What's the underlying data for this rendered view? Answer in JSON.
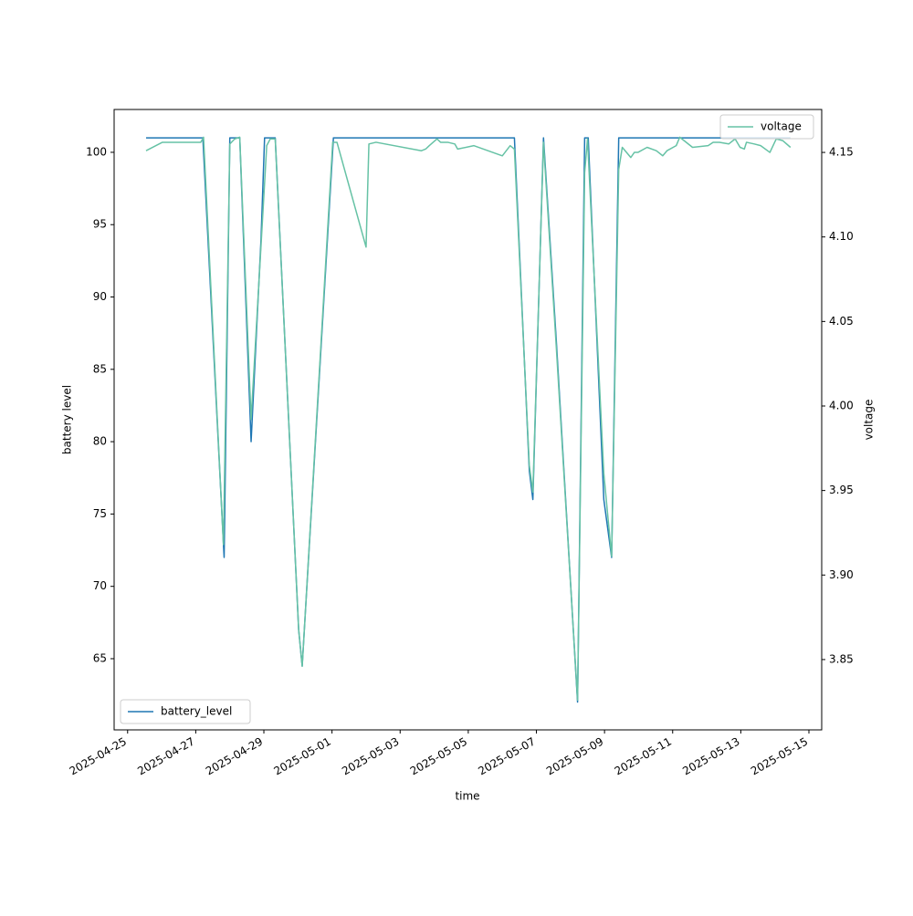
{
  "chart_data": {
    "type": "line",
    "x_label": "time",
    "y_label": "battery level",
    "y2_label": "voltage",
    "xlim": [
      "2025-04-24T14:30",
      "2025-05-15T09:00"
    ],
    "xticks": [
      "2025-04-25",
      "2025-04-27",
      "2025-04-29",
      "2025-05-01",
      "2025-05-03",
      "2025-05-05",
      "2025-05-07",
      "2025-05-09",
      "2025-05-11",
      "2025-05-13",
      "2025-05-15"
    ],
    "ylim": [
      60.08,
      102.96
    ],
    "yticks": [
      65,
      70,
      75,
      80,
      85,
      90,
      95,
      100
    ],
    "y2lim": [
      3.8084,
      4.1754
    ],
    "y2ticks": [
      3.85,
      {
        "value": 3.9,
        "label": "3.90"
      },
      3.95,
      {
        "value": 4.0,
        "label": "4.00"
      },
      4.05,
      {
        "value": 4.1,
        "label": "4.10"
      },
      4.15
    ],
    "series": [
      {
        "name": "battery_level",
        "color": "#1f77b4",
        "legend": "lower left",
        "x": [
          "2025-04-25T13:00",
          "2025-04-27T05:00",
          "2025-04-27T20:00",
          "2025-04-28T00:00",
          "2025-04-28T07:00",
          "2025-04-28T15:00",
          "2025-04-28T22:00",
          "2025-04-29T00:30",
          "2025-04-29T08:00",
          "2025-04-30T00:30",
          "2025-04-30T03:00",
          "2025-05-01T01:00",
          "2025-05-06T08:30",
          "2025-05-06T19:00",
          "2025-05-06T21:30",
          "2025-05-07T05:00",
          "2025-05-07T14:00",
          "2025-05-08T05:00",
          "2025-05-08T10:00",
          "2025-05-08T12:30",
          "2025-05-08T23:30",
          "2025-05-09T05:00",
          "2025-05-09T10:00",
          "2025-05-14T11:00"
        ],
        "values": [
          101,
          101,
          72,
          101,
          101,
          80,
          94,
          101,
          101,
          67,
          64.5,
          101,
          101,
          78,
          76,
          101,
          87,
          62,
          101,
          101,
          76,
          72,
          101,
          101
        ]
      },
      {
        "name": "voltage",
        "color": "#66c2a5",
        "axis": "y2",
        "legend": "upper right",
        "x": [
          "2025-04-25T13:00",
          "2025-04-26T00:30",
          "2025-04-27T03:30",
          "2025-04-27T05:30",
          "2025-04-27T19:30",
          "2025-04-28T00:00",
          "2025-04-28T03:30",
          "2025-04-28T07:00",
          "2025-04-28T15:00",
          "2025-04-29T02:00",
          "2025-04-29T04:30",
          "2025-04-29T08:00",
          "2025-04-30T00:30",
          "2025-04-30T03:00",
          "2025-05-01T00:30",
          "2025-05-01T03:30",
          "2025-05-02T00:00",
          "2025-05-02T02:00",
          "2025-05-02T07:00",
          "2025-05-03T15:00",
          "2025-05-03T18:00",
          "2025-05-03T20:30",
          "2025-05-04T02:00",
          "2025-05-04T04:30",
          "2025-05-04T09:30",
          "2025-05-04T14:30",
          "2025-05-04T16:30",
          "2025-05-05T04:00",
          "2025-05-06T00:00",
          "2025-05-06T05:30",
          "2025-05-06T08:30",
          "2025-05-06T19:00",
          "2025-05-06T21:30",
          "2025-05-07T05:00",
          "2025-05-07T14:00",
          "2025-05-08T05:00",
          "2025-05-08T10:00",
          "2025-05-08T12:00",
          "2025-05-08T23:30",
          "2025-05-09T05:00",
          "2025-05-09T10:00",
          "2025-05-09T12:30",
          "2025-05-09T18:30",
          "2025-05-09T21:00",
          "2025-05-09T23:30",
          "2025-05-10T06:00",
          "2025-05-10T12:30",
          "2025-05-10T17:00",
          "2025-05-10T20:00",
          "2025-05-11T02:30",
          "2025-05-11T05:00",
          "2025-05-11T14:00",
          "2025-05-12T01:00",
          "2025-05-12T04:30",
          "2025-05-12T09:00",
          "2025-05-12T15:30",
          "2025-05-12T20:00",
          "2025-05-12T23:30",
          "2025-05-13T02:30",
          "2025-05-13T04:00",
          "2025-05-13T09:30",
          "2025-05-13T14:00",
          "2025-05-13T20:30",
          "2025-05-14T01:00",
          "2025-05-14T05:30",
          "2025-05-14T11:00"
        ],
        "values": [
          4.151,
          4.156,
          4.156,
          4.159,
          3.918,
          4.155,
          4.158,
          4.159,
          3.992,
          4.154,
          4.158,
          4.158,
          3.868,
          3.846,
          4.156,
          4.156,
          4.094,
          4.155,
          4.156,
          4.151,
          4.152,
          4.154,
          4.158,
          4.156,
          4.156,
          4.155,
          4.152,
          4.154,
          4.148,
          4.154,
          4.152,
          3.965,
          3.949,
          4.156,
          4.035,
          3.826,
          4.138,
          4.158,
          3.96,
          3.911,
          4.14,
          4.153,
          4.147,
          4.15,
          4.15,
          4.153,
          4.151,
          4.148,
          4.151,
          4.154,
          4.159,
          4.153,
          4.154,
          4.156,
          4.156,
          4.155,
          4.158,
          4.153,
          4.152,
          4.156,
          4.155,
          4.154,
          4.15,
          4.158,
          4.157,
          4.153
        ]
      }
    ]
  }
}
